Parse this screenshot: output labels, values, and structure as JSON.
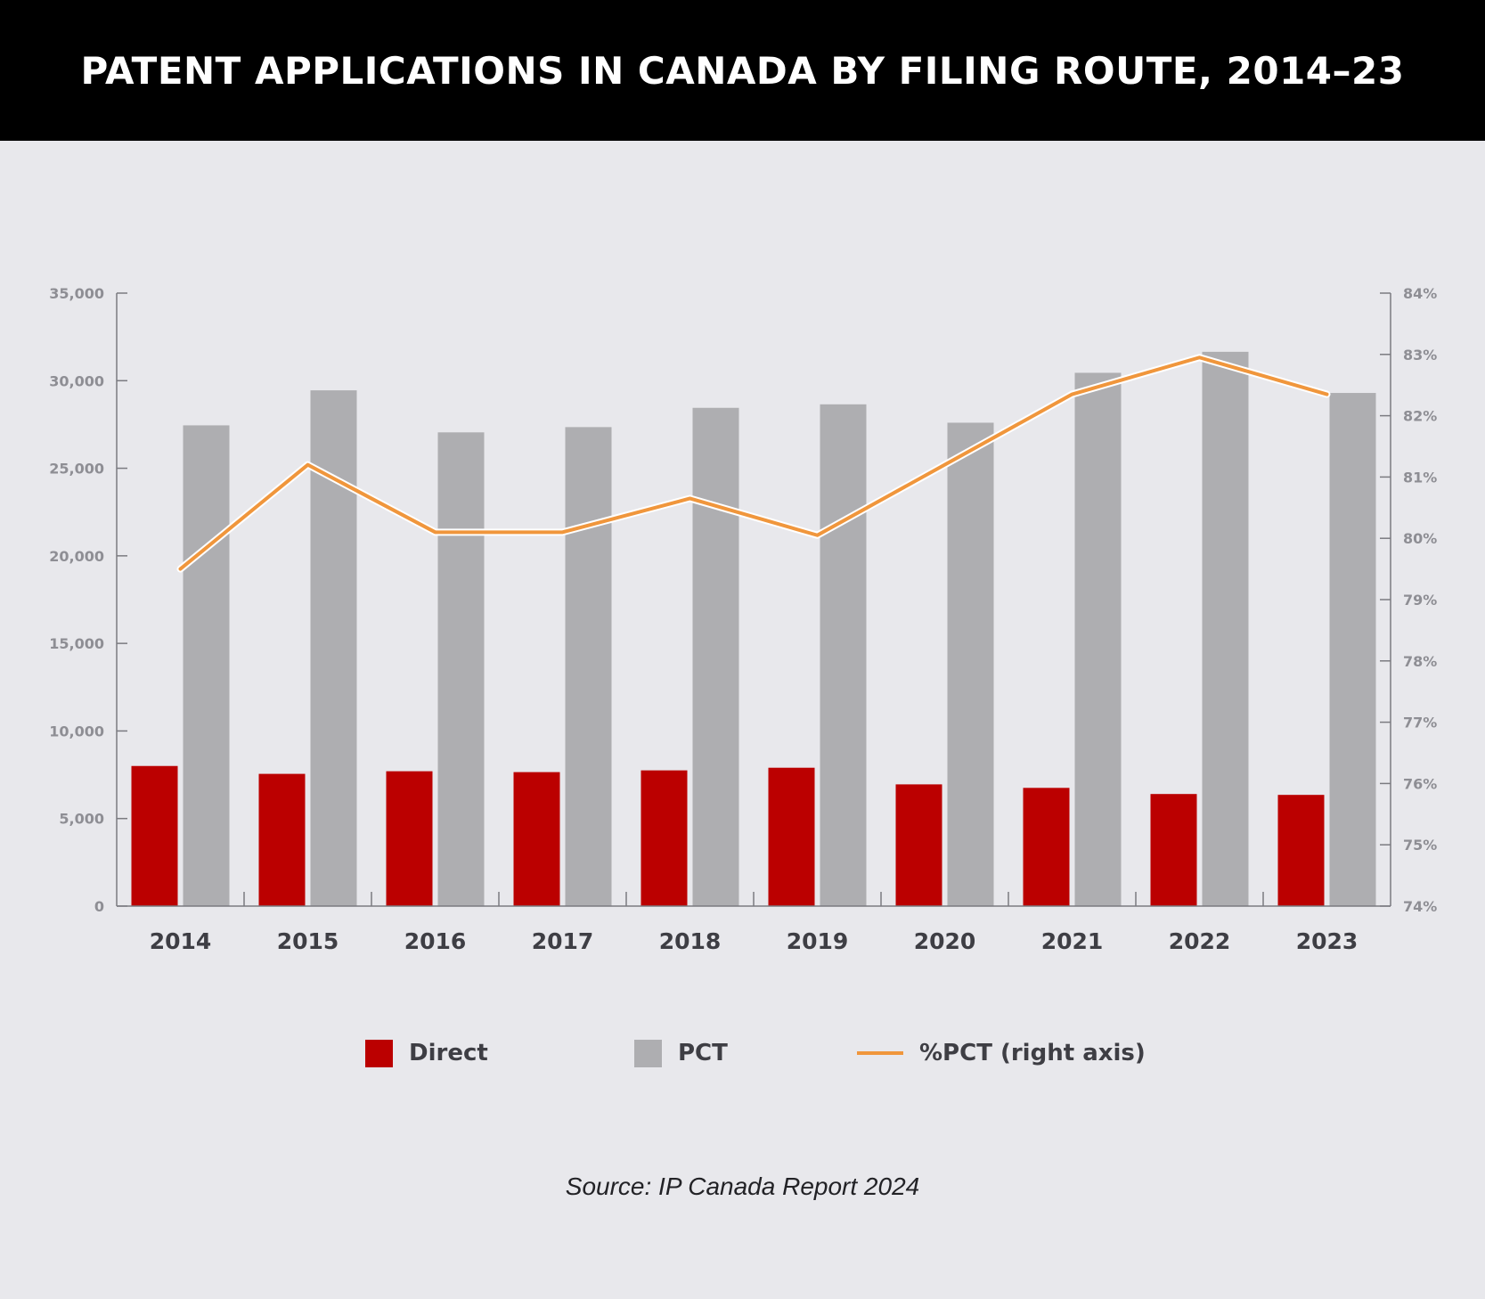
{
  "title": "PATENT APPLICATIONS IN CANADA BY FILING ROUTE, 2014–23",
  "source": "Source: IP Canada Report 2024",
  "colors": {
    "direct": "#bb0000",
    "pct": "#aeaeb1",
    "pct_share": "#f0963c",
    "axis": "#7a7a80",
    "background": "#e8e8ec",
    "header": "#000000"
  },
  "chart_data": {
    "type": "bar",
    "title": "PATENT APPLICATIONS IN CANADA BY FILING ROUTE, 2014–23",
    "categories": [
      "2014",
      "2015",
      "2016",
      "2017",
      "2018",
      "2019",
      "2020",
      "2021",
      "2022",
      "2023"
    ],
    "series": [
      {
        "name": "Direct",
        "type": "bar",
        "axis": "left",
        "values": [
          8000,
          7550,
          7700,
          7650,
          7750,
          7900,
          6950,
          6750,
          6400,
          6350
        ]
      },
      {
        "name": "PCT",
        "type": "bar",
        "axis": "left",
        "values": [
          27450,
          29450,
          27050,
          27350,
          28450,
          28650,
          27600,
          30450,
          31650,
          29300
        ]
      },
      {
        "name": "%PCT (right axis)",
        "type": "line",
        "axis": "right",
        "values": [
          79.5,
          81.2,
          80.1,
          80.1,
          80.65,
          80.05,
          81.2,
          82.35,
          82.95,
          82.35
        ]
      }
    ],
    "y_left": {
      "ylim": [
        0,
        35000
      ],
      "ticks": [
        0,
        5000,
        10000,
        15000,
        20000,
        25000,
        30000,
        35000
      ],
      "tick_labels": [
        "0",
        "5,000",
        "10,000",
        "15,000",
        "20,000",
        "25,000",
        "30,000",
        "35,000"
      ]
    },
    "y_right": {
      "ylim": [
        74,
        84
      ],
      "ticks": [
        74,
        75,
        76,
        77,
        78,
        79,
        80,
        81,
        82,
        83,
        84
      ],
      "tick_labels": [
        "74%",
        "75%",
        "76%",
        "77%",
        "78%",
        "79%",
        "80%",
        "81%",
        "82%",
        "83%",
        "84%"
      ]
    },
    "grid": false,
    "legend_position": "bottom"
  }
}
